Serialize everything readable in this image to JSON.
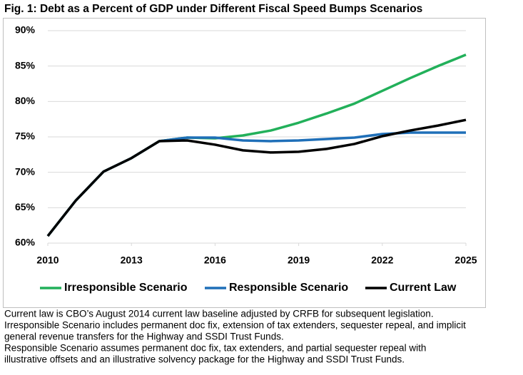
{
  "chart_data": {
    "type": "line",
    "title": "Fig. 1: Debt as a Percent of GDP under Different Fiscal Speed Bumps Scenarios",
    "x": [
      2010,
      2011,
      2012,
      2013,
      2014,
      2015,
      2016,
      2017,
      2018,
      2019,
      2020,
      2021,
      2022,
      2023,
      2024,
      2025
    ],
    "xlim": [
      2010,
      2025
    ],
    "xticks": [
      2010,
      2013,
      2016,
      2019,
      2022,
      2025
    ],
    "ylim": [
      60,
      90
    ],
    "yticks": [
      {
        "value": 60,
        "label": "60%"
      },
      {
        "value": 65,
        "label": "65%"
      },
      {
        "value": 70,
        "label": "70%"
      },
      {
        "value": 75,
        "label": "75%"
      },
      {
        "value": 80,
        "label": "80%"
      },
      {
        "value": 85,
        "label": "85%"
      },
      {
        "value": 90,
        "label": "90%"
      }
    ],
    "grid": true,
    "legend": "bottom",
    "series": [
      {
        "name": "Irresponsible Scenario",
        "color": "#22b05a",
        "values": [
          61.0,
          66.0,
          70.1,
          72.0,
          74.4,
          74.9,
          74.8,
          75.2,
          75.9,
          77.0,
          78.3,
          79.7,
          81.5,
          83.3,
          85.0,
          86.6
        ]
      },
      {
        "name": "Responsible Scenario",
        "color": "#1f6fb8",
        "values": [
          61.0,
          66.0,
          70.1,
          72.0,
          74.4,
          74.9,
          74.9,
          74.5,
          74.4,
          74.5,
          74.7,
          74.9,
          75.4,
          75.6,
          75.6,
          75.6
        ]
      },
      {
        "name": "Current Law",
        "color": "#000000",
        "values": [
          61.0,
          66.0,
          70.1,
          72.0,
          74.4,
          74.5,
          73.9,
          73.1,
          72.8,
          72.9,
          73.3,
          74.0,
          75.1,
          75.9,
          76.6,
          77.4
        ]
      }
    ],
    "notes": [
      "Current law is CBO’s August 2014 current law baseline adjusted by CRFB for subsequent legislation.",
      "Irresponsible Scenario includes permanent doc fix, extension of tax extenders, sequester repeal, and implicit",
      "general revenue transfers for the Highway and SSDI Trust Funds.",
      "Responsible Scenario assumes permanent doc fix, tax extenders, and partial sequester repeal with",
      "illustrative offsets and an illustrative solvency package for the Highway and SSDI Trust Funds."
    ]
  }
}
